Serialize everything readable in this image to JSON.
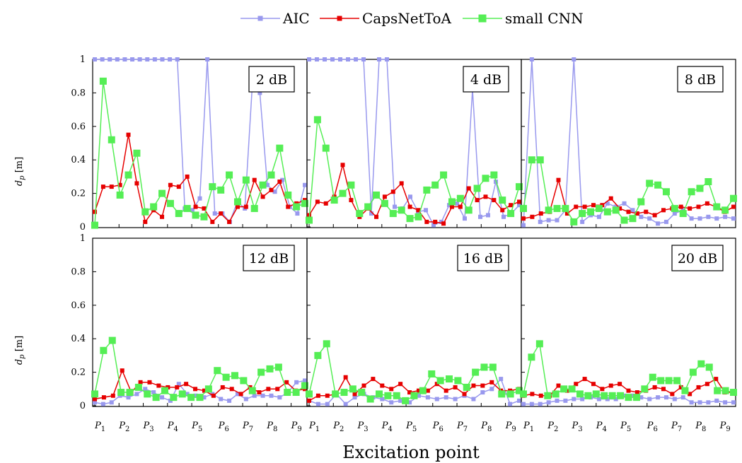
{
  "colors": {
    "AIC": "#9999ee",
    "CapsNetToA": "#e60000",
    "small CNN": "#55ee55"
  },
  "chart_data": {
    "type": "line",
    "xlabel": "Excitation point",
    "ylabel": "d_p [m]",
    "ylabel_parts": {
      "main": "d",
      "sub": "p",
      "unit": "[m]"
    },
    "ylim": [
      0,
      1
    ],
    "yticks": [
      "0",
      "0.2",
      "0.4",
      "0.6",
      "0.8",
      "1"
    ],
    "xticks": [
      {
        "main": "P",
        "sub": "1"
      },
      {
        "main": "P",
        "sub": "2"
      },
      {
        "main": "P",
        "sub": "3"
      },
      {
        "main": "P",
        "sub": "4"
      },
      {
        "main": "P",
        "sub": "5"
      },
      {
        "main": "P",
        "sub": "6"
      },
      {
        "main": "P",
        "sub": "7"
      },
      {
        "main": "P",
        "sub": "8"
      },
      {
        "main": "P",
        "sub": "9"
      }
    ],
    "legend": [
      "AIC",
      "CapsNetToA",
      "small CNN"
    ],
    "legend_position": "top-center",
    "panels": [
      {
        "label": "2 dB",
        "series": [
          {
            "name": "AIC",
            "values": [
              1,
              1,
              1,
              1,
              1,
              1,
              1,
              1,
              1,
              1,
              1,
              1,
              0.11,
              0.1,
              0.17,
              1,
              0.08,
              0.08,
              0.03,
              0.15,
              0.11,
              0.85,
              0.8,
              0.25,
              0.21,
              0.28,
              0.12,
              0.08,
              0.25
            ]
          },
          {
            "name": "CapsNetToA",
            "values": [
              0.09,
              0.24,
              0.24,
              0.25,
              0.55,
              0.26,
              0.03,
              0.1,
              0.06,
              0.25,
              0.24,
              0.3,
              0.12,
              0.11,
              0.03,
              0.08,
              0.03,
              0.12,
              0.12,
              0.28,
              0.18,
              0.22,
              0.27,
              0.12,
              0.14,
              0.16
            ]
          },
          {
            "name": "small CNN",
            "values": [
              0.01,
              0.87,
              0.52,
              0.19,
              0.31,
              0.44,
              0.09,
              0.12,
              0.2,
              0.14,
              0.08,
              0.11,
              0.07,
              0.06,
              0.24,
              0.22,
              0.31,
              0.15,
              0.28,
              0.11,
              0.25,
              0.31,
              0.47,
              0.19,
              0.12,
              0.14
            ]
          }
        ]
      },
      {
        "label": "4 dB",
        "series": [
          {
            "name": "AIC",
            "values": [
              1,
              1,
              1,
              1,
              1,
              1,
              1,
              1,
              0.08,
              1,
              1,
              0.12,
              0.11,
              0.18,
              0.09,
              0.1,
              0.01,
              0.03,
              0.13,
              0.14,
              0.05,
              0.82,
              0.06,
              0.07,
              0.27,
              0.06,
              0.08,
              0.13
            ]
          },
          {
            "name": "CapsNetToA",
            "values": [
              0.07,
              0.15,
              0.14,
              0.18,
              0.37,
              0.16,
              0.06,
              0.11,
              0.06,
              0.18,
              0.21,
              0.26,
              0.12,
              0.1,
              0.03,
              0.03,
              0.02,
              0.12,
              0.12,
              0.23,
              0.16,
              0.18,
              0.16,
              0.1,
              0.13,
              0.15
            ]
          },
          {
            "name": "small CNN",
            "values": [
              0.04,
              0.64,
              0.47,
              0.16,
              0.2,
              0.25,
              0.08,
              0.12,
              0.19,
              0.14,
              0.08,
              0.1,
              0.05,
              0.06,
              0.22,
              0.25,
              0.31,
              0.15,
              0.17,
              0.1,
              0.23,
              0.29,
              0.31,
              0.16,
              0.08,
              0.24
            ]
          }
        ]
      },
      {
        "label": "8 dB",
        "series": [
          {
            "name": "AIC",
            "values": [
              0.01,
              1,
              0.03,
              0.04,
              0.04,
              0.1,
              1,
              0.03,
              0.07,
              0.06,
              0.14,
              0.12,
              0.14,
              0.1,
              0.06,
              0.05,
              0.02,
              0.03,
              0.08,
              0.1,
              0.05,
              0.05,
              0.06,
              0.05,
              0.06,
              0.05
            ]
          },
          {
            "name": "CapsNetToA",
            "values": [
              0.05,
              0.06,
              0.08,
              0.09,
              0.28,
              0.08,
              0.12,
              0.12,
              0.13,
              0.13,
              0.17,
              0.11,
              0.09,
              0.08,
              0.09,
              0.07,
              0.1,
              0.11,
              0.12,
              0.11,
              0.12,
              0.14,
              0.12,
              0.09,
              0.12
            ]
          },
          {
            "name": "small CNN",
            "values": [
              0.11,
              0.4,
              0.4,
              0.1,
              0.11,
              0.11,
              0.03,
              0.08,
              0.09,
              0.11,
              0.09,
              0.1,
              0.04,
              0.05,
              0.15,
              0.26,
              0.25,
              0.21,
              0.11,
              0.08,
              0.21,
              0.23,
              0.27,
              0.12,
              0.1,
              0.17
            ]
          }
        ]
      },
      {
        "label": "12 dB",
        "series": [
          {
            "name": "AIC",
            "values": [
              0.02,
              0.01,
              0.02,
              0.06,
              0.05,
              0.07,
              0.1,
              0.08,
              0.05,
              0.03,
              0.13,
              0.07,
              0.06,
              0.05,
              0.07,
              0.04,
              0.03,
              0.07,
              0.04,
              0.06,
              0.06,
              0.06,
              0.05,
              0.08,
              0.14,
              0.15
            ]
          },
          {
            "name": "CapsNetToA",
            "values": [
              0.04,
              0.05,
              0.06,
              0.21,
              0.08,
              0.14,
              0.14,
              0.12,
              0.11,
              0.11,
              0.13,
              0.1,
              0.09,
              0.06,
              0.11,
              0.1,
              0.07,
              0.11,
              0.08,
              0.1,
              0.1,
              0.14,
              0.09,
              0.1
            ]
          },
          {
            "name": "small CNN",
            "values": [
              0.07,
              0.33,
              0.39,
              0.08,
              0.08,
              0.11,
              0.07,
              0.05,
              0.09,
              0.05,
              0.07,
              0.05,
              0.05,
              0.1,
              0.21,
              0.17,
              0.18,
              0.15,
              0.09,
              0.2,
              0.22,
              0.23,
              0.08,
              0.08,
              0.12
            ]
          }
        ]
      },
      {
        "label": "16 dB",
        "series": [
          {
            "name": "AIC",
            "values": [
              0.03,
              0.01,
              0.01,
              0.07,
              0.01,
              0.05,
              0.07,
              0.05,
              0.04,
              0.02,
              0.03,
              0.02,
              0.06,
              0.05,
              0.04,
              0.05,
              0.04,
              0.06,
              0.04,
              0.08,
              0.1,
              0.16,
              0.01,
              0.03
            ]
          },
          {
            "name": "CapsNetToA",
            "values": [
              0.03,
              0.06,
              0.06,
              0.07,
              0.17,
              0.07,
              0.12,
              0.16,
              0.12,
              0.1,
              0.13,
              0.08,
              0.09,
              0.09,
              0.13,
              0.09,
              0.11,
              0.07,
              0.12,
              0.12,
              0.14,
              0.09,
              0.09,
              0.1
            ]
          },
          {
            "name": "small CNN",
            "values": [
              0.07,
              0.3,
              0.37,
              0.07,
              0.08,
              0.1,
              0.08,
              0.04,
              0.07,
              0.06,
              0.06,
              0.03,
              0.06,
              0.09,
              0.19,
              0.15,
              0.16,
              0.15,
              0.11,
              0.2,
              0.23,
              0.23,
              0.07,
              0.07,
              0.09
            ]
          }
        ]
      },
      {
        "label": "20 dB",
        "series": [
          {
            "name": "AIC",
            "values": [
              0.01,
              0.01,
              0.01,
              0.02,
              0.03,
              0.03,
              0.04,
              0.04,
              0.05,
              0.04,
              0.04,
              0.04,
              0.06,
              0.06,
              0.05,
              0.04,
              0.05,
              0.05,
              0.04,
              0.05,
              0.02,
              0.02,
              0.02,
              0.03,
              0.02,
              0.02
            ]
          },
          {
            "name": "CapsNetToA",
            "values": [
              0.06,
              0.07,
              0.06,
              0.06,
              0.12,
              0.09,
              0.13,
              0.16,
              0.13,
              0.1,
              0.12,
              0.13,
              0.09,
              0.08,
              0.09,
              0.11,
              0.1,
              0.07,
              0.11,
              0.07,
              0.11,
              0.13,
              0.16,
              0.08,
              0.08
            ]
          },
          {
            "name": "small CNN",
            "values": [
              0.07,
              0.29,
              0.37,
              0.06,
              0.07,
              0.1,
              0.1,
              0.07,
              0.06,
              0.07,
              0.06,
              0.06,
              0.06,
              0.05,
              0.05,
              0.1,
              0.17,
              0.15,
              0.15,
              0.15,
              0.09,
              0.2,
              0.25,
              0.23,
              0.09,
              0.09,
              0.08
            ]
          }
        ]
      }
    ]
  }
}
